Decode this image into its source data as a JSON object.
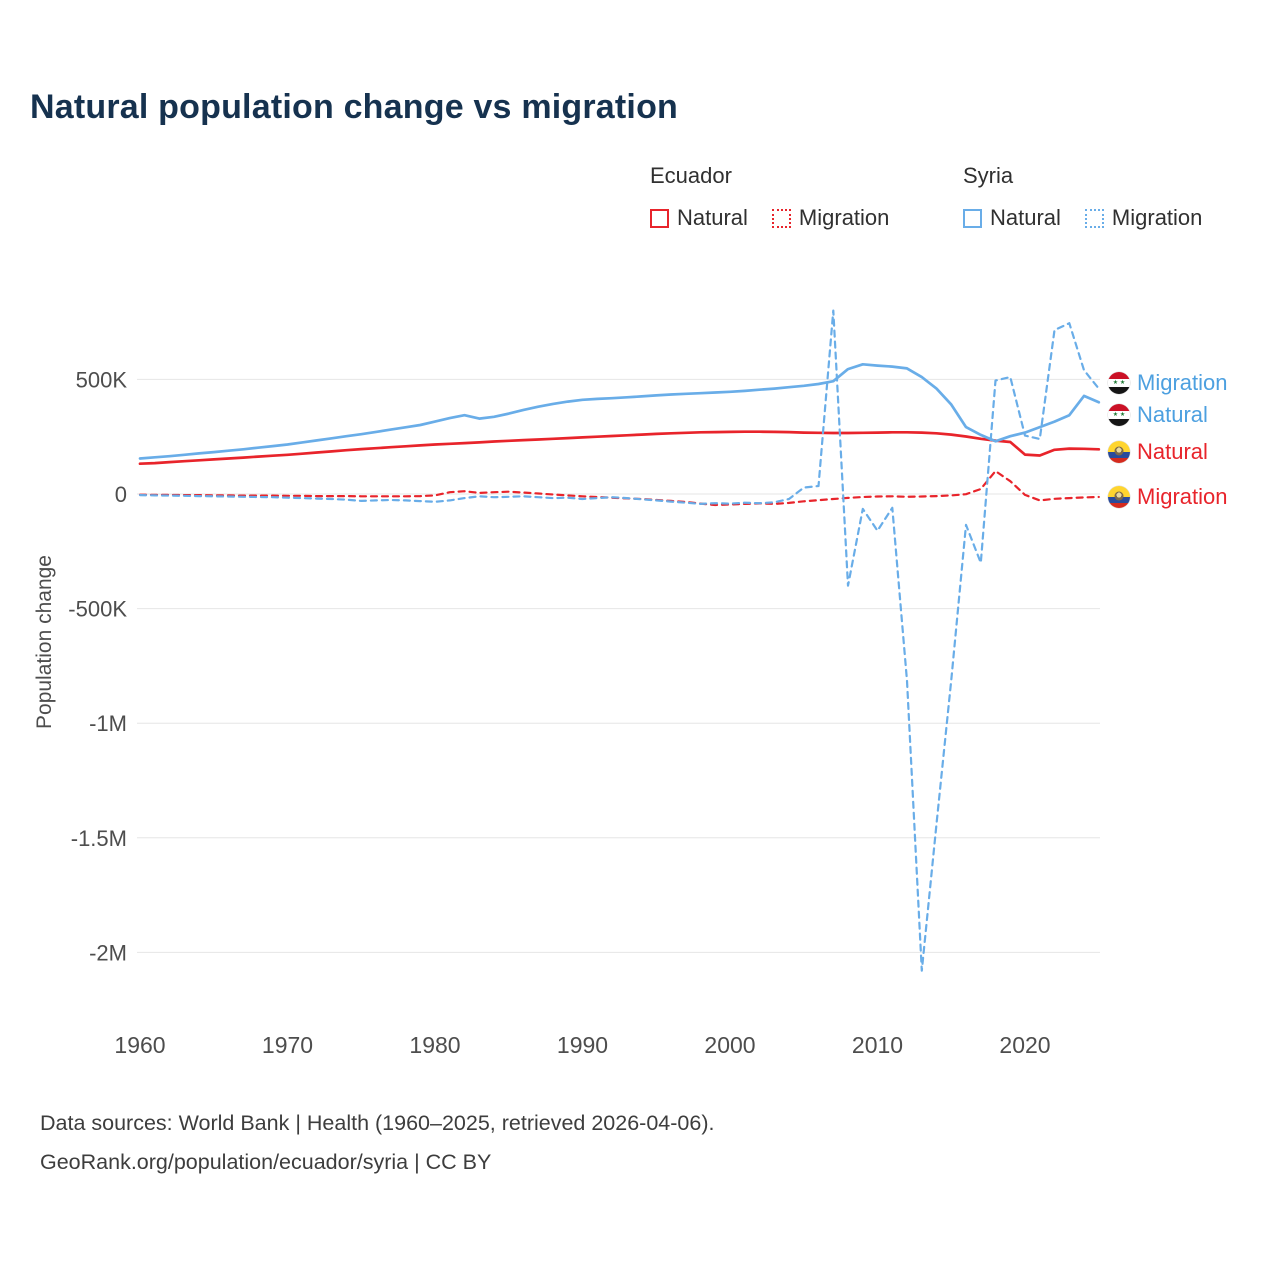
{
  "title": "Natural population change vs migration",
  "accent_colors": {
    "red": "#e8242b",
    "blue": "#69ade8",
    "title_navy": "#16324f"
  },
  "legend": {
    "groups": [
      {
        "country": "Ecuador",
        "items": [
          {
            "label": "Natural",
            "style": "solid",
            "color": "#e8242b"
          },
          {
            "label": "Migration",
            "style": "dashed",
            "color": "#e8242b"
          }
        ]
      },
      {
        "country": "Syria",
        "items": [
          {
            "label": "Natural",
            "style": "solid",
            "color": "#69ade8"
          },
          {
            "label": "Migration",
            "style": "dashed",
            "color": "#69ade8"
          }
        ]
      }
    ]
  },
  "series_labels": [
    {
      "label": "Migration",
      "flag": "syria-flag-icon",
      "color": "#69ade8"
    },
    {
      "label": "Natural",
      "flag": "syria-flag-icon",
      "color": "#69ade8"
    },
    {
      "label": "Natural",
      "flag": "ecuador-flag-icon",
      "color": "#e8242b"
    },
    {
      "label": "Migration",
      "flag": "ecuador-flag-icon",
      "color": "#e8242b"
    }
  ],
  "footer": {
    "line1": "Data sources: World Bank | Health (1960–2025, retrieved 2026-04-06).",
    "line2": "GeoRank.org/population/ecuador/syria | CC BY"
  },
  "chart_data": {
    "type": "line",
    "title": "Natural population change vs migration",
    "xlabel": "",
    "ylabel": "Population change",
    "x_range": [
      1960,
      2025
    ],
    "xticks": [
      1960,
      1970,
      1980,
      1990,
      2000,
      2010,
      2020
    ],
    "yticks": [
      {
        "value": 500000,
        "label": "500K"
      },
      {
        "value": 0,
        "label": "0"
      },
      {
        "value": -500000,
        "label": "-500K"
      },
      {
        "value": -1000000,
        "label": "-1M"
      },
      {
        "value": -1500000,
        "label": "-1.5M"
      },
      {
        "value": -2000000,
        "label": "-2M"
      }
    ],
    "ylim": [
      -2250000,
      900000
    ],
    "grid": true,
    "legend_position": "top-right",
    "units": "persons per year (values in thousands)",
    "years": [
      1960,
      1961,
      1962,
      1963,
      1964,
      1965,
      1966,
      1967,
      1968,
      1969,
      1970,
      1971,
      1972,
      1973,
      1974,
      1975,
      1976,
      1977,
      1978,
      1979,
      1980,
      1981,
      1982,
      1983,
      1984,
      1985,
      1986,
      1987,
      1988,
      1989,
      1990,
      1991,
      1992,
      1993,
      1994,
      1995,
      1996,
      1997,
      1998,
      1999,
      2000,
      2001,
      2002,
      2003,
      2004,
      2005,
      2006,
      2007,
      2008,
      2009,
      2010,
      2011,
      2012,
      2013,
      2014,
      2015,
      2016,
      2017,
      2018,
      2019,
      2020,
      2021,
      2022,
      2023,
      2024,
      2025
    ],
    "series": [
      {
        "id": "ecuador-natural",
        "name": "Ecuador Natural",
        "color": "#e8242b",
        "dash": false,
        "values_thousands": [
          132,
          135,
          139,
          143,
          147,
          151,
          155,
          159,
          163,
          167,
          171,
          176,
          181,
          186,
          191,
          196,
          200,
          204,
          208,
          212,
          216,
          219,
          222,
          225,
          229,
          232,
          235,
          238,
          241,
          244,
          247,
          250,
          253,
          256,
          259,
          262,
          265,
          267,
          269,
          270,
          271,
          272,
          272,
          271,
          270,
          268,
          267,
          266,
          266,
          267,
          268,
          269,
          269,
          268,
          265,
          259,
          251,
          241,
          233,
          227,
          172,
          168,
          193,
          198,
          197,
          195
        ]
      },
      {
        "id": "ecuador-migration",
        "name": "Ecuador Migration",
        "color": "#e8242b",
        "dash": true,
        "values_thousands": [
          -3,
          -4,
          -4,
          -5,
          -5,
          -6,
          -6,
          -7,
          -7,
          -7,
          -8,
          -8,
          -9,
          -9,
          -9,
          -10,
          -10,
          -10,
          -10,
          -9,
          -6,
          8,
          12,
          5,
          8,
          10,
          6,
          2,
          -2,
          -6,
          -10,
          -13,
          -16,
          -19,
          -22,
          -26,
          -30,
          -35,
          -42,
          -48,
          -46,
          -43,
          -41,
          -43,
          -39,
          -32,
          -27,
          -22,
          -17,
          -13,
          -11,
          -10,
          -12,
          -11,
          -9,
          -6,
          -1,
          22,
          100,
          56,
          -4,
          -28,
          -21,
          -18,
          -15,
          -13
        ]
      },
      {
        "id": "syria-natural",
        "name": "Syria Natural",
        "color": "#69ade8",
        "dash": false,
        "values_thousands": [
          155,
          160,
          165,
          171,
          177,
          183,
          189,
          195,
          202,
          209,
          216,
          225,
          234,
          243,
          252,
          261,
          271,
          281,
          291,
          301,
          316,
          331,
          344,
          329,
          337,
          351,
          367,
          381,
          393,
          403,
          411,
          415,
          418,
          422,
          426,
          430,
          434,
          437,
          440,
          443,
          446,
          450,
          455,
          460,
          466,
          472,
          480,
          492,
          545,
          566,
          560,
          556,
          548,
          510,
          460,
          390,
          292,
          258,
          230,
          252,
          268,
          292,
          316,
          344,
          428,
          400
        ]
      },
      {
        "id": "syria-migration",
        "name": "Syria Migration",
        "color": "#69ade8",
        "dash": true,
        "values_thousands": [
          -5,
          -6,
          -7,
          -8,
          -9,
          -10,
          -11,
          -12,
          -13,
          -14,
          -16,
          -18,
          -20,
          -22,
          -25,
          -30,
          -28,
          -26,
          -28,
          -31,
          -34,
          -28,
          -18,
          -10,
          -14,
          -12,
          -10,
          -14,
          -18,
          -16,
          -22,
          -18,
          -14,
          -18,
          -23,
          -28,
          -33,
          -38,
          -43,
          -40,
          -42,
          -38,
          -40,
          -36,
          -22,
          28,
          35,
          800,
          -400,
          -65,
          -160,
          -60,
          -815,
          -2080,
          -1440,
          -810,
          -135,
          -300,
          495,
          510,
          255,
          240,
          715,
          745,
          540,
          460
        ]
      }
    ]
  }
}
